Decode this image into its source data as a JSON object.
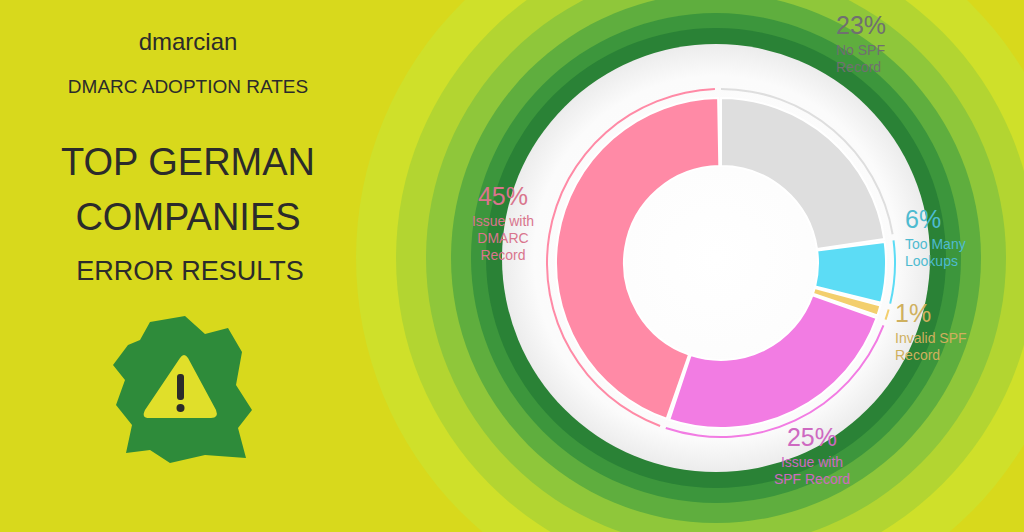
{
  "chart_data": {
    "type": "pie",
    "title": "TOP GERMAN COMPANIES",
    "subtitle": "ERROR RESULTS",
    "annotations": [
      "dmarcian",
      "DMARC ADOPTION RATES"
    ],
    "categories": [
      "No SPF Record",
      "Too Many Lookups",
      "Invalid SPF Record",
      "Issue with SPF Record",
      "Issue with DMARC Record"
    ],
    "values": [
      23,
      6,
      1,
      25,
      45
    ],
    "value_labels": [
      "23%",
      "6%",
      "1%",
      "25%",
      "45%"
    ],
    "colors": [
      "#dedede",
      "#5cdcf5",
      "#f3cf6e",
      "#f27ce3",
      "#ff8aa6"
    ],
    "data_labels": true
  }
}
